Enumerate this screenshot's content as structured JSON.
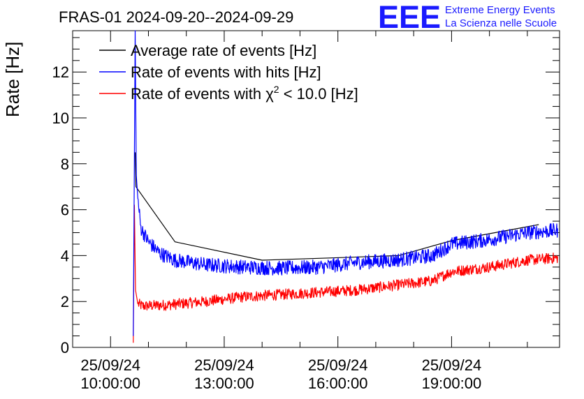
{
  "chart_data": {
    "type": "line",
    "title": "FRAS-01 2024-09-20--2024-09-29",
    "xlabel": "",
    "ylabel": "Rate [Hz]",
    "ylim": [
      0,
      13.8
    ],
    "xlim_hours": [
      9.0,
      21.85
    ],
    "yticks": [
      0,
      2,
      4,
      6,
      8,
      10,
      12
    ],
    "xticks": [
      {
        "hour": 10,
        "date": "25/09/24",
        "time": "10:00:00"
      },
      {
        "hour": 13,
        "date": "25/09/24",
        "time": "13:00:00"
      },
      {
        "hour": 16,
        "date": "25/09/24",
        "time": "16:00:00"
      },
      {
        "hour": 19,
        "date": "25/09/24",
        "time": "19:00:00"
      }
    ],
    "legend_position": "top-left",
    "series": [
      {
        "name": "Average rate of events [Hz]",
        "color": "#000000",
        "x": [
          10.65,
          10.67,
          11.7,
          14.0,
          15.85,
          17.6,
          19.0,
          21.3
        ],
        "y": [
          8.5,
          7.0,
          4.6,
          3.8,
          3.9,
          4.0,
          4.65,
          5.35
        ]
      },
      {
        "name": "Rate of events with hits [Hz]",
        "color": "#0000ff",
        "noise": 0.2,
        "x": [
          10.6,
          10.65,
          10.68,
          10.72,
          10.8,
          11.0,
          11.3,
          11.7,
          12.5,
          13.5,
          14.5,
          15.5,
          16.5,
          17.5,
          18.5,
          19.0,
          20.0,
          21.0,
          21.8
        ],
        "y": [
          0.5,
          13.8,
          7.5,
          6.5,
          5.2,
          4.6,
          4.1,
          3.8,
          3.6,
          3.5,
          3.45,
          3.5,
          3.7,
          3.8,
          4.0,
          4.5,
          4.7,
          5.0,
          5.1
        ]
      },
      {
        "name": "Rate of events with χ² < 10.0 [Hz]",
        "color": "#ff0000",
        "noise": 0.15,
        "x": [
          10.6,
          10.63,
          10.66,
          10.72,
          10.85,
          11.5,
          12.5,
          13.5,
          14.5,
          15.5,
          16.5,
          17.5,
          18.5,
          19.0,
          20.0,
          21.0,
          21.8
        ],
        "y": [
          0.2,
          6.2,
          2.5,
          1.9,
          1.8,
          1.85,
          2.0,
          2.2,
          2.3,
          2.4,
          2.5,
          2.7,
          2.9,
          3.3,
          3.5,
          3.8,
          3.9
        ]
      }
    ],
    "legend_labels": {
      "avg": "Average rate of events [Hz]",
      "hits": "Rate of events with hits [Hz]",
      "chi_prefix": "Rate of events with ",
      "chi_symbol": "χ",
      "chi_exp": "2",
      "chi_suffix": " < 10.0 [Hz]"
    }
  },
  "logo": {
    "mark": "EEE",
    "line1": "Extreme Energy Events",
    "line2": "La Scienza nelle Scuole"
  }
}
